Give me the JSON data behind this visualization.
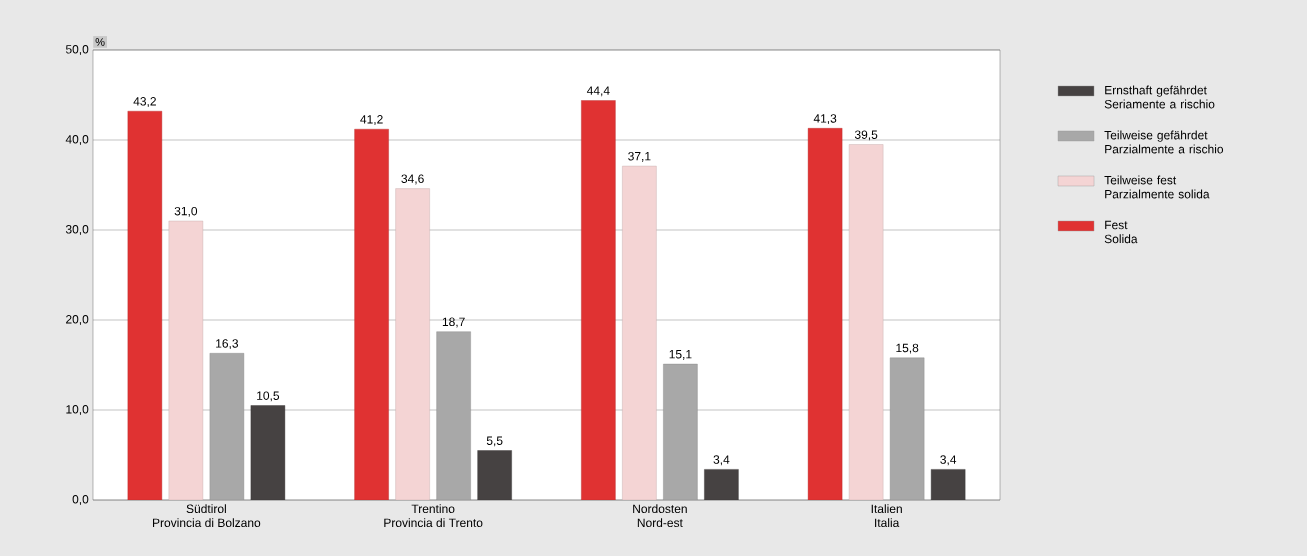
{
  "chart_data": {
    "type": "bar",
    "ylabel": "%",
    "categories": [
      "Südtirol\nProvincia di Bolzano",
      "Trentino\nProvincia di Trento",
      "Nordosten\nNord-est",
      "Italien\nItalia"
    ],
    "series": [
      {
        "name": "Fest\nSolida",
        "color": "#e03232",
        "values": [
          43.2,
          41.2,
          44.4,
          41.3
        ],
        "value_labels": [
          "43,2",
          "41,2",
          "44,4",
          "41,3"
        ]
      },
      {
        "name": "Teilweise fest\nParzialmente solida",
        "color": "#f4d4d4",
        "values": [
          31.0,
          34.6,
          37.1,
          39.5
        ],
        "value_labels": [
          "31,0",
          "34,6",
          "37,1",
          "39,5"
        ]
      },
      {
        "name": "Teilweise gefährdet\nParzialmente a rischio",
        "color": "#a8a8a8",
        "values": [
          16.3,
          18.7,
          15.1,
          15.8
        ],
        "value_labels": [
          "16,3",
          "18,7",
          "15,1",
          "15,8"
        ]
      },
      {
        "name": "Ernsthaft gefährdet\nSeriamente a rischio",
        "color": "#464242",
        "values": [
          10.5,
          5.5,
          3.4,
          3.4
        ],
        "value_labels": [
          "10,5",
          "5,5",
          "3,4",
          "3,4"
        ]
      }
    ],
    "ylim": [
      0,
      50
    ],
    "yticks": [
      {
        "value": 0,
        "label": "0,0"
      },
      {
        "value": 10,
        "label": "10,0"
      },
      {
        "value": 20,
        "label": "20,0"
      },
      {
        "value": 30,
        "label": "30,0"
      },
      {
        "value": 40,
        "label": "40,0"
      },
      {
        "value": 50,
        "label": "50,0"
      }
    ],
    "grid": "y",
    "legend": "right"
  }
}
